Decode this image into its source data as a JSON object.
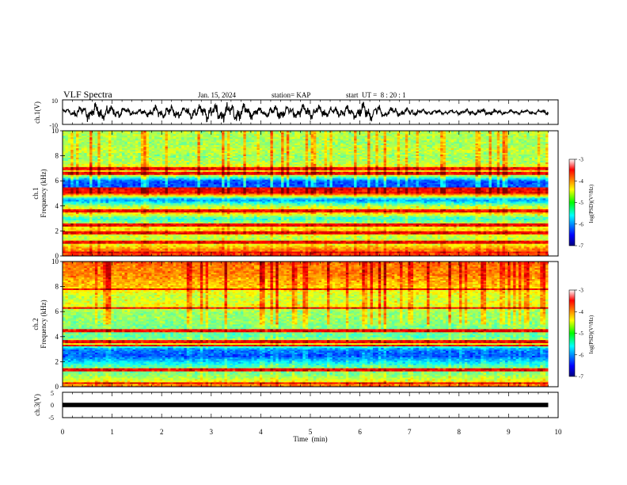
{
  "header": {
    "title": "VLF Spectra",
    "date": "Jan. 15, 2024",
    "station": "station= KAP",
    "start_ut": "start  UT =  8 : 20 : 1"
  },
  "chart_data": [
    {
      "type": "line",
      "name": "ch1-waveform",
      "ylabel": "ch.1(V)",
      "ylim": [
        -10,
        10
      ],
      "y_ticks": [
        "10",
        "-10"
      ],
      "xlim": [
        0,
        10
      ],
      "x_end_data": 9.8,
      "x_units": "min",
      "amplitude_envelope_V": [
        [
          0.0,
          3
        ],
        [
          0.5,
          7
        ],
        [
          1.0,
          6
        ],
        [
          1.5,
          2
        ],
        [
          2.0,
          6
        ],
        [
          2.5,
          5
        ],
        [
          3.0,
          8
        ],
        [
          3.5,
          9
        ],
        [
          4.0,
          4
        ],
        [
          4.5,
          6
        ],
        [
          5.0,
          7
        ],
        [
          5.5,
          4
        ],
        [
          6.0,
          8
        ],
        [
          6.5,
          5
        ],
        [
          7.0,
          3
        ],
        [
          7.5,
          2
        ],
        [
          8.0,
          2
        ],
        [
          8.5,
          3
        ],
        [
          9.0,
          2
        ],
        [
          9.5,
          2
        ],
        [
          9.8,
          2
        ]
      ]
    },
    {
      "type": "heatmap",
      "name": "ch1-spectrogram",
      "ylabel": "ch.1\nFrequency (kHz)",
      "ylabel_lines": [
        "ch.1",
        "Frequency (kHz)"
      ],
      "ylim": [
        0,
        10
      ],
      "y_ticks": [
        "0",
        "2",
        "4",
        "6",
        "8",
        "10"
      ],
      "xlim": [
        0,
        10
      ],
      "x_end_data": 9.8,
      "colorbar": {
        "label": "log(PSD)(V²/Hz)",
        "range": [
          -7,
          -3
        ],
        "ticks": [
          "-3",
          "-4",
          "-5",
          "-6",
          "-7"
        ]
      },
      "mean_log_psd_by_freq_kHz": [
        [
          0.0,
          -3.6
        ],
        [
          0.5,
          -4.0
        ],
        [
          1.0,
          -4.6
        ],
        [
          1.5,
          -4.8
        ],
        [
          2.0,
          -4.3
        ],
        [
          2.5,
          -4.6
        ],
        [
          3.0,
          -5.4
        ],
        [
          3.5,
          -4.2
        ],
        [
          4.0,
          -4.8
        ],
        [
          4.5,
          -6.0
        ],
        [
          5.0,
          -3.7
        ],
        [
          5.5,
          -6.2
        ],
        [
          6.0,
          -6.2
        ],
        [
          6.5,
          -4.6
        ],
        [
          7.0,
          -4.4
        ],
        [
          7.5,
          -4.8
        ],
        [
          8.0,
          -4.9
        ],
        [
          8.5,
          -4.7
        ],
        [
          9.0,
          -4.9
        ],
        [
          9.5,
          -4.8
        ],
        [
          10.0,
          -4.8
        ]
      ],
      "bright_lines_kHz": [
        0.3,
        1.1,
        1.9,
        2.5,
        3.6,
        5.1,
        5.4,
        6.6,
        7.0
      ]
    },
    {
      "type": "heatmap",
      "name": "ch2-spectrogram",
      "ylabel": "ch.2\nFrequency (kHz)",
      "ylabel_lines": [
        "ch.2",
        "Frequency (kHz)"
      ],
      "ylim": [
        0,
        10
      ],
      "y_ticks": [
        "0",
        "2",
        "4",
        "6",
        "8",
        "10"
      ],
      "xlim": [
        0,
        10
      ],
      "x_end_data": 9.8,
      "colorbar": {
        "label": "log(PSD)(V²/Hz)",
        "range": [
          -7,
          -3
        ],
        "ticks": [
          "-3",
          "-4",
          "-5",
          "-6",
          "-7"
        ]
      },
      "mean_log_psd_by_freq_kHz": [
        [
          0.0,
          -3.8
        ],
        [
          0.5,
          -4.6
        ],
        [
          1.0,
          -5.0
        ],
        [
          1.5,
          -5.0
        ],
        [
          2.0,
          -5.6
        ],
        [
          2.5,
          -6.2
        ],
        [
          3.0,
          -6.0
        ],
        [
          3.5,
          -4.4
        ],
        [
          4.0,
          -5.2
        ],
        [
          4.5,
          -5.0
        ],
        [
          5.0,
          -5.0
        ],
        [
          5.5,
          -4.9
        ],
        [
          6.0,
          -4.9
        ],
        [
          6.5,
          -4.5
        ],
        [
          7.0,
          -4.7
        ],
        [
          7.5,
          -4.6
        ],
        [
          8.0,
          -4.3
        ],
        [
          8.5,
          -4.2
        ],
        [
          9.0,
          -4.0
        ],
        [
          9.5,
          -4.0
        ],
        [
          10.0,
          -3.9
        ]
      ],
      "bright_lines_kHz": [
        0.3,
        1.4,
        3.3,
        3.6,
        4.5,
        6.3,
        7.8
      ]
    },
    {
      "type": "line",
      "name": "ch3-waveform",
      "ylabel": "ch.3(V)",
      "ylim": [
        -5,
        5
      ],
      "y_ticks": [
        "5",
        "0",
        "-5"
      ],
      "xlim": [
        0,
        10
      ],
      "x_end_data": 9.8,
      "xlabel": "Time  (min)",
      "x_ticks": [
        "0",
        "1",
        "2",
        "3",
        "4",
        "5",
        "6",
        "7",
        "8",
        "9",
        "10"
      ],
      "level_band_V": [
        -0.4,
        0.4
      ]
    }
  ]
}
